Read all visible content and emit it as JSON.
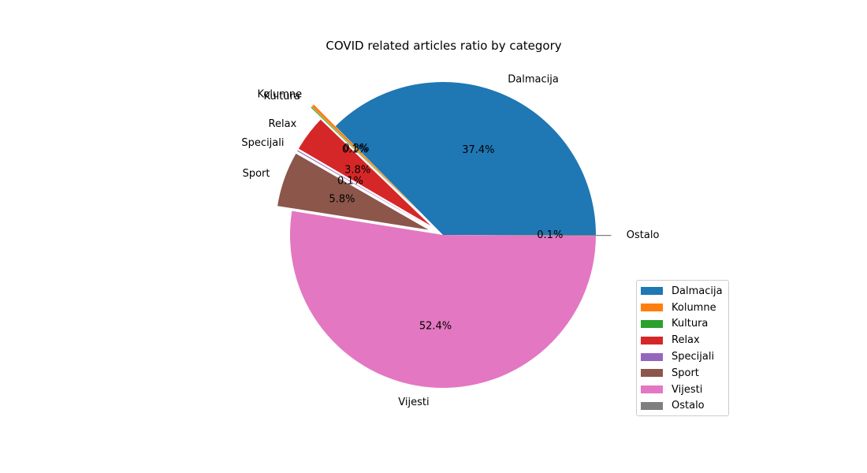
{
  "chart_data": {
    "type": "pie",
    "title": "COVID related articles ratio by category",
    "start_angle": 0,
    "counterclockwise": true,
    "slices": [
      {
        "label": "Dalmacija",
        "value": 37.4,
        "pct_label": "37.4%",
        "color": "#1f77b4",
        "explode": 0.0
      },
      {
        "label": "Kolumne",
        "value": 0.3,
        "pct_label": "0.3%",
        "color": "#ff7f0e",
        "explode": 0.2
      },
      {
        "label": "Kultura",
        "value": 0.1,
        "pct_label": "0.1%",
        "color": "#2ca02c",
        "explode": 0.2
      },
      {
        "label": "Relax",
        "value": 3.8,
        "pct_label": "3.8%",
        "color": "#d62728",
        "explode": 0.1
      },
      {
        "label": "Specijali",
        "value": 0.1,
        "pct_label": "0.1%",
        "color": "#9467bd",
        "explode": 0.1
      },
      {
        "label": "Sport",
        "value": 5.8,
        "pct_label": "5.8%",
        "color": "#8c564b",
        "explode": 0.1
      },
      {
        "label": "Vijesti",
        "value": 52.4,
        "pct_label": "52.4%",
        "color": "#e377c2",
        "explode": 0.0
      },
      {
        "label": "Ostalo",
        "value": 0.1,
        "pct_label": "0.1%",
        "color": "#7f7f7f",
        "explode": 0.1
      }
    ],
    "legend_position": "lower-right"
  }
}
